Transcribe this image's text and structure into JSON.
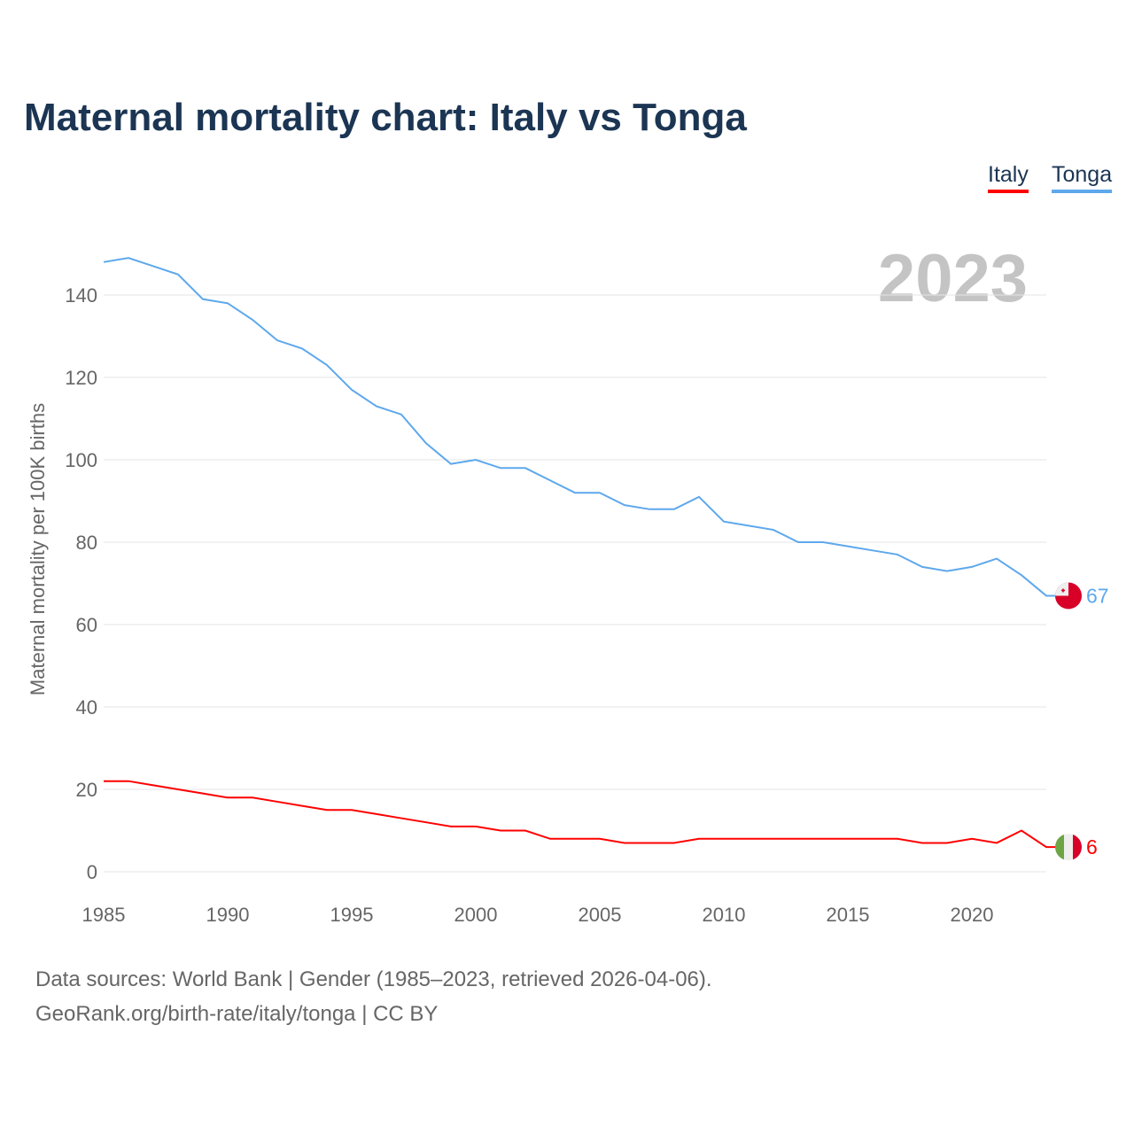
{
  "title": "Maternal mortality chart: Italy vs Tonga",
  "footer": {
    "line1": "Data sources: World Bank | Gender (1985–2023, retrieved 2026-04-06).",
    "line2": "GeoRank.org/birth-rate/italy/tonga | CC BY"
  },
  "chart_data": {
    "type": "line",
    "title": "Maternal mortality chart: Italy vs Tonga",
    "ylabel": "Maternal mortality per 100K births",
    "xlabel": "",
    "year_label": "2023",
    "xlim": [
      1985,
      2023
    ],
    "ylim": [
      0,
      150
    ],
    "x_ticks": [
      "1985",
      "1990",
      "1995",
      "2000",
      "2005",
      "2010",
      "2015",
      "2020"
    ],
    "y_ticks": [
      "0",
      "20",
      "40",
      "60",
      "80",
      "100",
      "120",
      "140"
    ],
    "grid": true,
    "legend_position": "top-right",
    "x": [
      1985,
      1986,
      1987,
      1988,
      1989,
      1990,
      1991,
      1992,
      1993,
      1994,
      1995,
      1996,
      1997,
      1998,
      1999,
      2000,
      2001,
      2002,
      2003,
      2004,
      2005,
      2006,
      2007,
      2008,
      2009,
      2010,
      2011,
      2012,
      2013,
      2014,
      2015,
      2016,
      2017,
      2018,
      2019,
      2020,
      2021,
      2022,
      2023
    ],
    "series": [
      {
        "name": "Italy",
        "color": "#ff0000",
        "end_label": "6",
        "flag": "italy-flag-icon",
        "values": [
          22,
          22,
          21,
          20,
          19,
          18,
          18,
          17,
          16,
          15,
          15,
          14,
          13,
          12,
          11,
          11,
          10,
          10,
          8,
          8,
          8,
          7,
          7,
          7,
          8,
          8,
          8,
          8,
          8,
          8,
          8,
          8,
          8,
          7,
          7,
          8,
          7,
          10,
          6
        ]
      },
      {
        "name": "Tonga",
        "color": "#5ea8ec",
        "end_label": "67",
        "flag": "tonga-flag-icon",
        "values": [
          148,
          149,
          147,
          145,
          139,
          138,
          134,
          129,
          127,
          123,
          117,
          113,
          111,
          104,
          99,
          100,
          98,
          98,
          95,
          92,
          92,
          89,
          88,
          88,
          91,
          85,
          84,
          83,
          80,
          80,
          79,
          78,
          77,
          74,
          73,
          74,
          76,
          72,
          67
        ]
      }
    ]
  }
}
